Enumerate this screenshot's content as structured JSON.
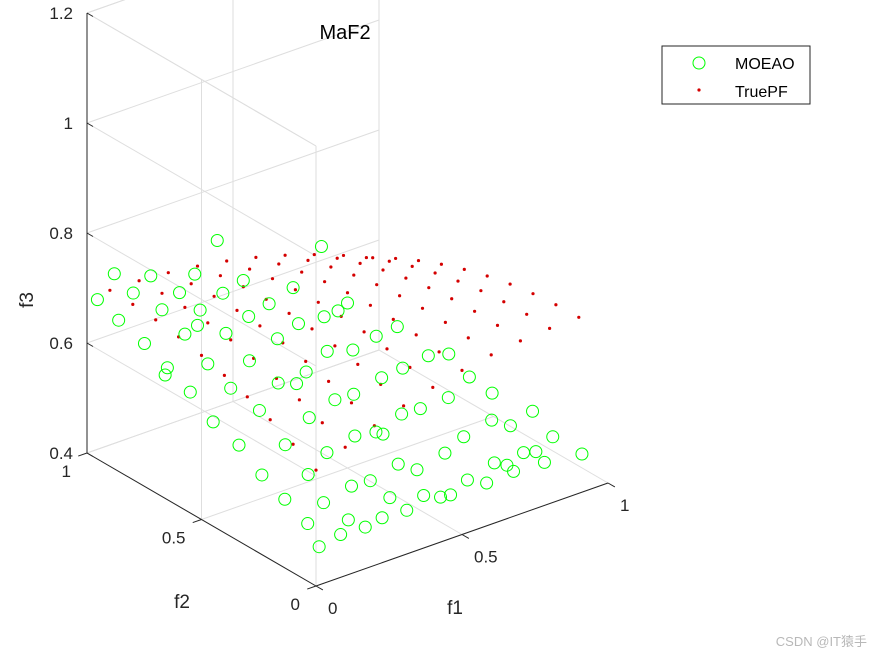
{
  "chart_data": {
    "type": "scatter",
    "title": "MaF2",
    "xlabel": "f1",
    "ylabel": "f2",
    "zlabel": "f3",
    "xlim": [
      0,
      1
    ],
    "ylim": [
      0,
      1
    ],
    "zlim": [
      0.4,
      1.2
    ],
    "xticks": [
      "0",
      "0.5",
      "1"
    ],
    "yticks": [
      "0",
      "0.5",
      "1"
    ],
    "zticks": [
      "0.4",
      "0.6",
      "0.8",
      "1",
      "1.2"
    ],
    "grid": true,
    "legend_position": "top-right",
    "series": [
      {
        "name": "MOEAO",
        "marker": "circle-open",
        "color": "#00ff00",
        "points": [
          [
            0.05,
            0.05,
            0.45
          ],
          [
            0.1,
            0.02,
            0.47
          ],
          [
            0.15,
            0.05,
            0.48
          ],
          [
            0.2,
            0.04,
            0.46
          ],
          [
            0.25,
            0.03,
            0.47
          ],
          [
            0.3,
            0.06,
            0.49
          ],
          [
            0.35,
            0.05,
            0.46
          ],
          [
            0.4,
            0.04,
            0.48
          ],
          [
            0.45,
            0.03,
            0.47
          ],
          [
            0.5,
            0.05,
            0.46
          ],
          [
            0.55,
            0.04,
            0.48
          ],
          [
            0.6,
            0.02,
            0.47
          ],
          [
            0.65,
            0.05,
            0.49
          ],
          [
            0.7,
            0.03,
            0.47
          ],
          [
            0.75,
            0.05,
            0.49
          ],
          [
            0.8,
            0.06,
            0.48
          ],
          [
            0.85,
            0.05,
            0.5
          ],
          [
            0.05,
            0.1,
            0.48
          ],
          [
            0.12,
            0.12,
            0.5
          ],
          [
            0.2,
            0.1,
            0.52
          ],
          [
            0.28,
            0.12,
            0.51
          ],
          [
            0.36,
            0.1,
            0.53
          ],
          [
            0.44,
            0.12,
            0.5
          ],
          [
            0.52,
            0.1,
            0.52
          ],
          [
            0.6,
            0.12,
            0.53
          ],
          [
            0.68,
            0.1,
            0.55
          ],
          [
            0.76,
            0.12,
            0.52
          ],
          [
            0.82,
            0.1,
            0.54
          ],
          [
            0.05,
            0.2,
            0.5
          ],
          [
            0.13,
            0.2,
            0.53
          ],
          [
            0.21,
            0.22,
            0.55
          ],
          [
            0.29,
            0.2,
            0.57
          ],
          [
            0.37,
            0.21,
            0.56
          ],
          [
            0.45,
            0.2,
            0.58
          ],
          [
            0.53,
            0.22,
            0.57
          ],
          [
            0.61,
            0.2,
            0.58
          ],
          [
            0.69,
            0.21,
            0.6
          ],
          [
            0.76,
            0.2,
            0.56
          ],
          [
            0.05,
            0.3,
            0.52
          ],
          [
            0.13,
            0.3,
            0.56
          ],
          [
            0.22,
            0.31,
            0.59
          ],
          [
            0.3,
            0.3,
            0.61
          ],
          [
            0.38,
            0.32,
            0.6
          ],
          [
            0.46,
            0.3,
            0.62
          ],
          [
            0.54,
            0.31,
            0.62
          ],
          [
            0.62,
            0.3,
            0.63
          ],
          [
            0.69,
            0.3,
            0.62
          ],
          [
            0.05,
            0.4,
            0.55
          ],
          [
            0.12,
            0.4,
            0.6
          ],
          [
            0.2,
            0.42,
            0.63
          ],
          [
            0.28,
            0.4,
            0.64
          ],
          [
            0.36,
            0.41,
            0.66
          ],
          [
            0.44,
            0.4,
            0.65
          ],
          [
            0.52,
            0.4,
            0.66
          ],
          [
            0.6,
            0.41,
            0.66
          ],
          [
            0.04,
            0.5,
            0.57
          ],
          [
            0.1,
            0.5,
            0.62
          ],
          [
            0.18,
            0.52,
            0.65
          ],
          [
            0.26,
            0.5,
            0.68
          ],
          [
            0.34,
            0.51,
            0.69
          ],
          [
            0.42,
            0.5,
            0.69
          ],
          [
            0.5,
            0.5,
            0.7
          ],
          [
            0.04,
            0.6,
            0.6
          ],
          [
            0.1,
            0.6,
            0.64
          ],
          [
            0.17,
            0.61,
            0.68
          ],
          [
            0.24,
            0.6,
            0.7
          ],
          [
            0.31,
            0.6,
            0.71
          ],
          [
            0.4,
            0.61,
            0.72
          ],
          [
            0.04,
            0.7,
            0.62
          ],
          [
            0.1,
            0.7,
            0.67
          ],
          [
            0.16,
            0.71,
            0.7
          ],
          [
            0.23,
            0.7,
            0.72
          ],
          [
            0.3,
            0.7,
            0.73
          ],
          [
            0.04,
            0.8,
            0.64
          ],
          [
            0.1,
            0.8,
            0.69
          ],
          [
            0.16,
            0.8,
            0.71
          ],
          [
            0.22,
            0.81,
            0.73
          ],
          [
            0.03,
            0.9,
            0.66
          ],
          [
            0.08,
            0.9,
            0.7
          ],
          [
            0.14,
            0.9,
            0.72
          ],
          [
            0.02,
            0.98,
            0.68
          ],
          [
            0.07,
            0.97,
            0.72
          ],
          [
            0.3,
            0.9,
            0.6
          ],
          [
            0.45,
            0.55,
            0.8
          ],
          [
            0.15,
            0.85,
            0.55
          ],
          [
            0.7,
            0.6,
            0.4
          ],
          [
            0.85,
            0.25,
            0.4
          ],
          [
            0.9,
            0.15,
            0.42
          ],
          [
            0.95,
            0.05,
            0.45
          ],
          [
            0.6,
            0.85,
            0.45
          ],
          [
            0.35,
            0.35,
            0.75
          ],
          [
            0.25,
            0.75,
            0.8
          ]
        ]
      },
      {
        "name": "TruePF",
        "marker": "point",
        "color": "#d40000",
        "points": "grid f1,f2 in [0,0.9] step 0.1; f3 = 0.45 + 0.27*(1 - ((f1+f2)/2 - 0.45)^2 * 2)"
      }
    ]
  },
  "watermark": "CSDN @IT猿手"
}
